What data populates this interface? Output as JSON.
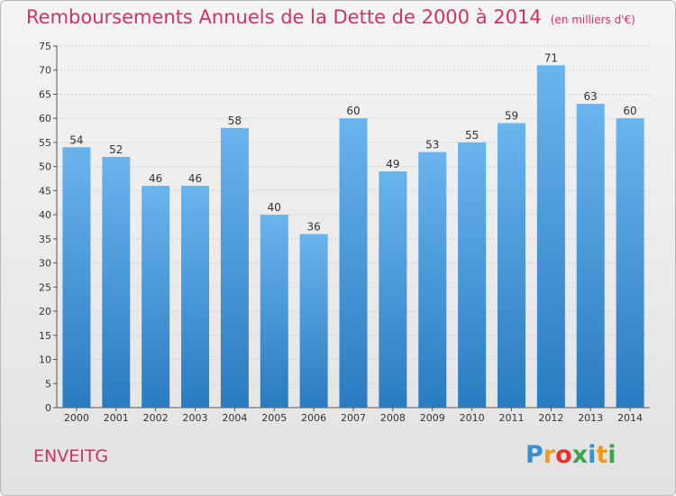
{
  "header": {
    "title": "Remboursements Annuels de la Dette de 2000 à 2014",
    "subtitle": "(en milliers d'€)"
  },
  "footer": {
    "place": "ENVEITG",
    "logo": [
      "P",
      "r",
      "o",
      "x",
      "i",
      "t",
      "i"
    ],
    "logo_colors": [
      "#3a8fd0",
      "#f09a1c",
      "#e8352a",
      "#3aa54a",
      "#3a8fd0",
      "#f09a1c",
      "#3aa54a"
    ]
  },
  "colors": {
    "bar_top": "#6ab4ee",
    "bar_bottom": "#2a7bc0",
    "grid": "#cfcfcf",
    "accent": "#cc3366"
  },
  "chart_data": {
    "type": "bar",
    "categories": [
      "2000",
      "2001",
      "2002",
      "2003",
      "2004",
      "2005",
      "2006",
      "2007",
      "2008",
      "2009",
      "2010",
      "2011",
      "2012",
      "2013",
      "2014"
    ],
    "values": [
      54,
      52,
      46,
      46,
      58,
      40,
      36,
      60,
      49,
      53,
      55,
      59,
      71,
      63,
      60
    ],
    "ylim": [
      0,
      75
    ],
    "yticks": [
      0,
      5,
      10,
      15,
      20,
      25,
      30,
      35,
      40,
      45,
      50,
      55,
      60,
      65,
      70,
      75
    ],
    "grid": true
  }
}
